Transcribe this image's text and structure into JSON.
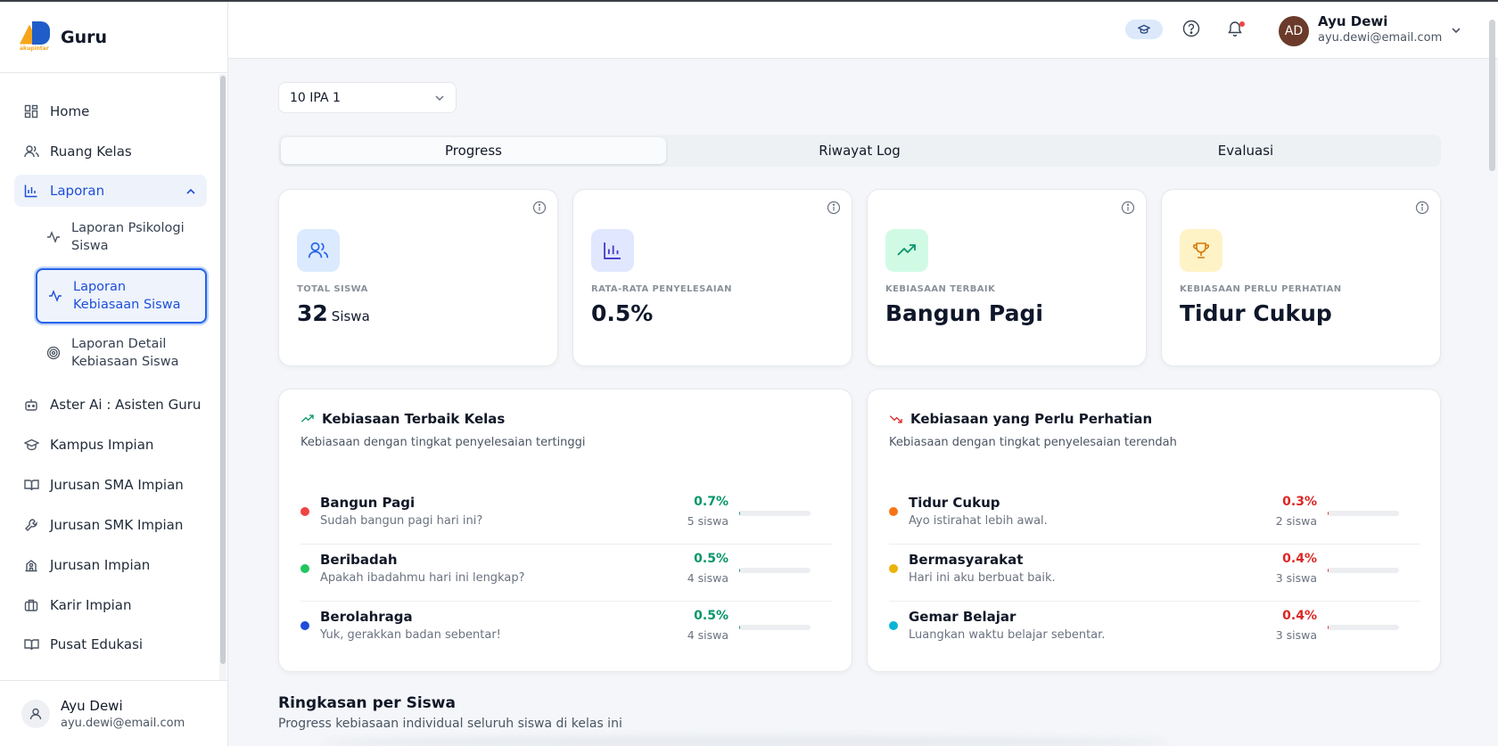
{
  "brand": {
    "title": "Guru",
    "logo_sub": "akupintar"
  },
  "sidebar": {
    "items": [
      {
        "label": "Home",
        "icon": "dashboard-icon"
      },
      {
        "label": "Ruang Kelas",
        "icon": "users-icon"
      },
      {
        "label": "Laporan",
        "icon": "bar-chart-icon"
      },
      {
        "label": "Aster Ai : Asisten Guru",
        "icon": "robot-icon"
      },
      {
        "label": "Kampus Impian",
        "icon": "graduation-cap-icon"
      },
      {
        "label": "Jurusan SMA Impian",
        "icon": "book-open-icon"
      },
      {
        "label": "Jurusan SMK Impian",
        "icon": "wrench-icon"
      },
      {
        "label": "Jurusan Impian",
        "icon": "school-icon"
      },
      {
        "label": "Karir Impian",
        "icon": "briefcase-icon"
      },
      {
        "label": "Pusat Edukasi",
        "icon": "book-icon"
      }
    ],
    "sub_items": [
      {
        "line1": "Laporan Psikologi",
        "line2": "Siswa"
      },
      {
        "line1": "Laporan",
        "line2": "Kebiasaan Siswa"
      },
      {
        "line1": "Laporan Detail",
        "line2": "Kebiasaan Siswa"
      }
    ],
    "user": {
      "name": "Ayu Dewi",
      "email": "ayu.dewi@email.com"
    }
  },
  "header": {
    "avatar_initials": "AD",
    "user_name": "Ayu Dewi",
    "user_email": "ayu.dewi@email.com"
  },
  "class_select": {
    "value": "10 IPA 1"
  },
  "tabs": [
    {
      "label": "Progress"
    },
    {
      "label": "Riwayat Log"
    },
    {
      "label": "Evaluasi"
    }
  ],
  "stats": [
    {
      "label": "TOTAL SISWA",
      "value": "32",
      "unit": "Siswa",
      "color": "#dbeafe"
    },
    {
      "label": "RATA-RATA PENYELESAIAN",
      "value": "0.5%",
      "unit": "",
      "color": "#e0e7ff"
    },
    {
      "label": "KEBIASAAN TERBAIK",
      "value": "Bangun Pagi",
      "unit": "",
      "color": "#d1fae5"
    },
    {
      "label": "KEBIASAAN PERLU PERHATIAN",
      "value": "Tidur Cukup",
      "unit": "",
      "color": "#fef3c7"
    }
  ],
  "best_panel": {
    "title": "Kebiasaan Terbaik Kelas",
    "desc": "Kebiasaan dengan tingkat penyelesaian tertinggi",
    "accent": "#059669",
    "rows": [
      {
        "name": "Bangun Pagi",
        "desc": "Sudah bangun pagi hari ini?",
        "pct": "0.7%",
        "count": "5 siswa",
        "dot": "#ef4444",
        "progress": 0.007
      },
      {
        "name": "Beribadah",
        "desc": "Apakah ibadahmu hari ini lengkap?",
        "pct": "0.5%",
        "count": "4 siswa",
        "dot": "#22c55e",
        "progress": 0.005
      },
      {
        "name": "Berolahraga",
        "desc": "Yuk, gerakkan badan sebentar!",
        "pct": "0.5%",
        "count": "4 siswa",
        "dot": "#1d4ed8",
        "progress": 0.005
      }
    ]
  },
  "attention_panel": {
    "title": "Kebiasaan yang Perlu Perhatian",
    "desc": "Kebiasaan dengan tingkat penyelesaian terendah",
    "accent": "#dc2626",
    "rows": [
      {
        "name": "Tidur Cukup",
        "desc": "Ayo istirahat lebih awal.",
        "pct": "0.3%",
        "count": "2 siswa",
        "dot": "#f97316",
        "progress": 0.003
      },
      {
        "name": "Bermasyarakat",
        "desc": "Hari ini aku berbuat baik.",
        "pct": "0.4%",
        "count": "3 siswa",
        "dot": "#eab308",
        "progress": 0.004
      },
      {
        "name": "Gemar Belajar",
        "desc": "Luangkan waktu belajar sebentar.",
        "pct": "0.4%",
        "count": "3 siswa",
        "dot": "#06b6d4",
        "progress": 0.004
      }
    ]
  },
  "summary": {
    "title": "Ringkasan per Siswa",
    "desc": "Progress kebiasaan individual seluruh siswa di kelas ini"
  }
}
